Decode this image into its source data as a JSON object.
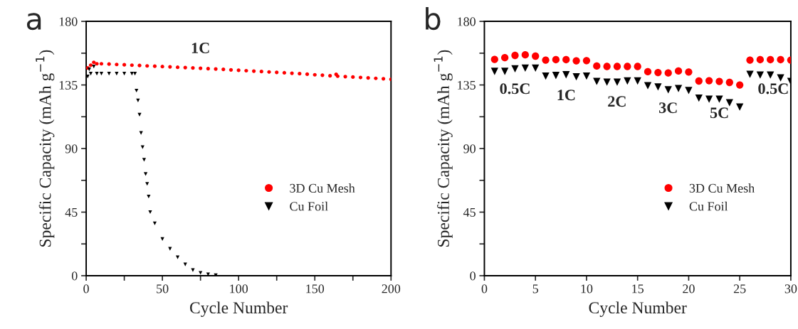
{
  "chart_data": [
    {
      "type": "scatter",
      "xlabel": "Cycle Number",
      "ylabel": "Specific Capacity (mAh g$^{−1}$)",
      "xlim": [
        0,
        200
      ],
      "xticks": [
        0,
        {
          "value": 25,
          "label": null
        },
        50,
        {
          "value": 75,
          "label": null
        },
        100,
        {
          "value": 125,
          "label": null
        },
        150,
        {
          "value": 175,
          "label": null
        },
        200
      ],
      "ylim": [
        0,
        180
      ],
      "yticks": [
        0,
        {
          "value": 22.5,
          "label": null
        },
        45,
        {
          "value": 67.5,
          "label": null
        },
        90,
        {
          "value": 112.5,
          "label": null
        },
        135,
        {
          "value": 157.5,
          "label": null
        },
        180
      ],
      "grid": false,
      "legend": "bottom right",
      "annotations": [
        "a",
        "1C"
      ],
      "series": [
        {
          "name": "3D Cu Mesh",
          "color": "#ff0000",
          "marker": "circle",
          "x": [
            1,
            3,
            5,
            7,
            10,
            15,
            20,
            25,
            30,
            35,
            40,
            45,
            50,
            55,
            60,
            65,
            70,
            75,
            80,
            85,
            90,
            95,
            100,
            105,
            110,
            115,
            120,
            125,
            130,
            135,
            140,
            145,
            150,
            155,
            160,
            164,
            165,
            170,
            175,
            180,
            185,
            190,
            195,
            200
          ],
          "values": [
            147,
            149,
            151,
            150,
            150,
            149.8,
            149.5,
            149.3,
            149,
            148.8,
            148.5,
            148.3,
            148,
            147.8,
            147.5,
            147.3,
            147,
            146.8,
            146.5,
            146.3,
            146,
            145.7,
            145.4,
            145.1,
            144.8,
            144.5,
            144.2,
            143.9,
            143.6,
            143.3,
            143,
            142.6,
            142.2,
            141.9,
            141.5,
            142.5,
            141.2,
            140.9,
            140.6,
            140.3,
            140,
            139.7,
            139.4,
            139
          ]
        },
        {
          "name": "Cu Foil",
          "color": "#000000",
          "marker": "triangle",
          "x": [
            1,
            2,
            3,
            5,
            7,
            10,
            15,
            20,
            25,
            30,
            32,
            33,
            34,
            35,
            36,
            37,
            38,
            39,
            40,
            41,
            42,
            45,
            50,
            55,
            60,
            65,
            70,
            75,
            80,
            85
          ],
          "values": [
            141,
            146,
            143,
            148,
            143,
            143,
            143,
            143,
            143,
            143,
            143,
            131,
            124,
            114,
            101,
            91,
            82,
            72,
            65,
            56,
            45,
            37,
            26,
            19,
            13,
            8,
            4,
            2,
            1,
            0.3
          ]
        }
      ]
    },
    {
      "type": "scatter",
      "xlabel": "Cycle Number",
      "ylabel": "Specific Capacity (mAh g$^{−1}$)",
      "xlim": [
        0,
        30
      ],
      "xticks": [
        0,
        5,
        10,
        15,
        20,
        25,
        30
      ],
      "ylim": [
        0,
        180
      ],
      "yticks": [
        0,
        {
          "value": 22.5,
          "label": null
        },
        45,
        {
          "value": 67.5,
          "label": null
        },
        90,
        {
          "value": 112.5,
          "label": null
        },
        135,
        {
          "value": 157.5,
          "label": null
        },
        180
      ],
      "grid": false,
      "legend": "bottom right",
      "annotations": [
        "b",
        "0.5C",
        "1C",
        "2C",
        "3C",
        "5C",
        "0.5C"
      ],
      "series": [
        {
          "name": "3D Cu Mesh",
          "color": "#ff0000",
          "marker": "circle",
          "x": [
            1,
            2,
            3,
            4,
            5,
            6,
            7,
            8,
            9,
            10,
            11,
            12,
            13,
            14,
            15,
            16,
            17,
            18,
            19,
            20,
            21,
            22,
            23,
            24,
            25,
            26,
            27,
            28,
            29,
            30
          ],
          "values": [
            153.1,
            154.3,
            155.9,
            156.3,
            155.4,
            152.6,
            152.9,
            152.9,
            152.1,
            152.2,
            148.4,
            148.1,
            148.1,
            148.1,
            148.1,
            144.4,
            143.8,
            143.5,
            144.9,
            144.2,
            137.8,
            138,
            137.5,
            136.8,
            135,
            152.6,
            152.9,
            152.9,
            152.9,
            152.6
          ]
        },
        {
          "name": "Cu Foil",
          "color": "#000000",
          "marker": "triangle",
          "x": [
            1,
            2,
            3,
            4,
            5,
            6,
            7,
            8,
            9,
            10,
            11,
            12,
            13,
            14,
            15,
            16,
            17,
            18,
            19,
            20,
            21,
            22,
            23,
            24,
            25,
            26,
            27,
            28,
            29,
            30
          ],
          "values": [
            144.6,
            144.6,
            146.4,
            146.9,
            146.9,
            141.3,
            141.7,
            142.2,
            140.8,
            141.3,
            137.5,
            137,
            137,
            137.8,
            137.8,
            134.5,
            133.6,
            131.6,
            132.5,
            131.1,
            125.7,
            124.9,
            124.9,
            122.4,
            119.4,
            142.5,
            142,
            142,
            140,
            137.5
          ]
        }
      ]
    }
  ]
}
